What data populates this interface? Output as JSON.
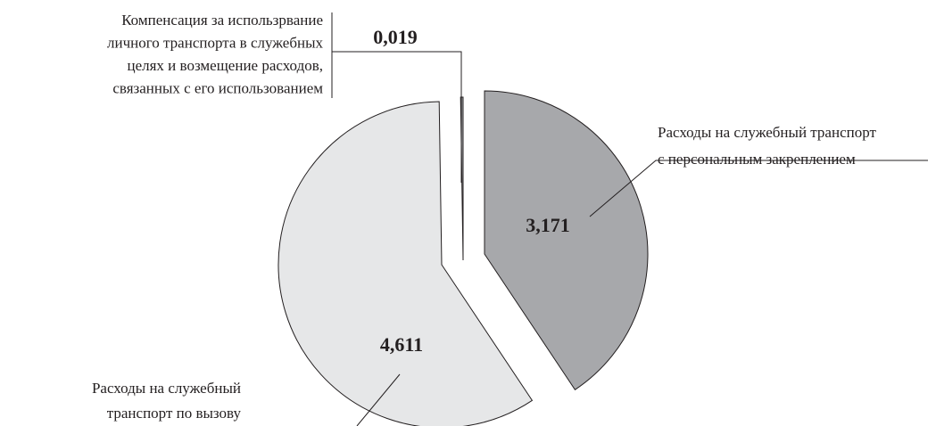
{
  "chart_data": {
    "type": "pie",
    "categories": [
      "Расходы на служебный транспорт\nс персональным закреплением",
      "Расходы на служебный\nтранспорт по вызову",
      "Компенсация за использрвание\nличного транспорта в служебных\nцелях и возмещение расходов,\nсвязанных с его использованием"
    ],
    "values": [
      3.171,
      4.611,
      0.019
    ],
    "value_labels": [
      "3,171",
      "4,611",
      "0,019"
    ],
    "colors": [
      "#a7a8ab",
      "#e6e7e8",
      "#a7a8ab"
    ]
  }
}
